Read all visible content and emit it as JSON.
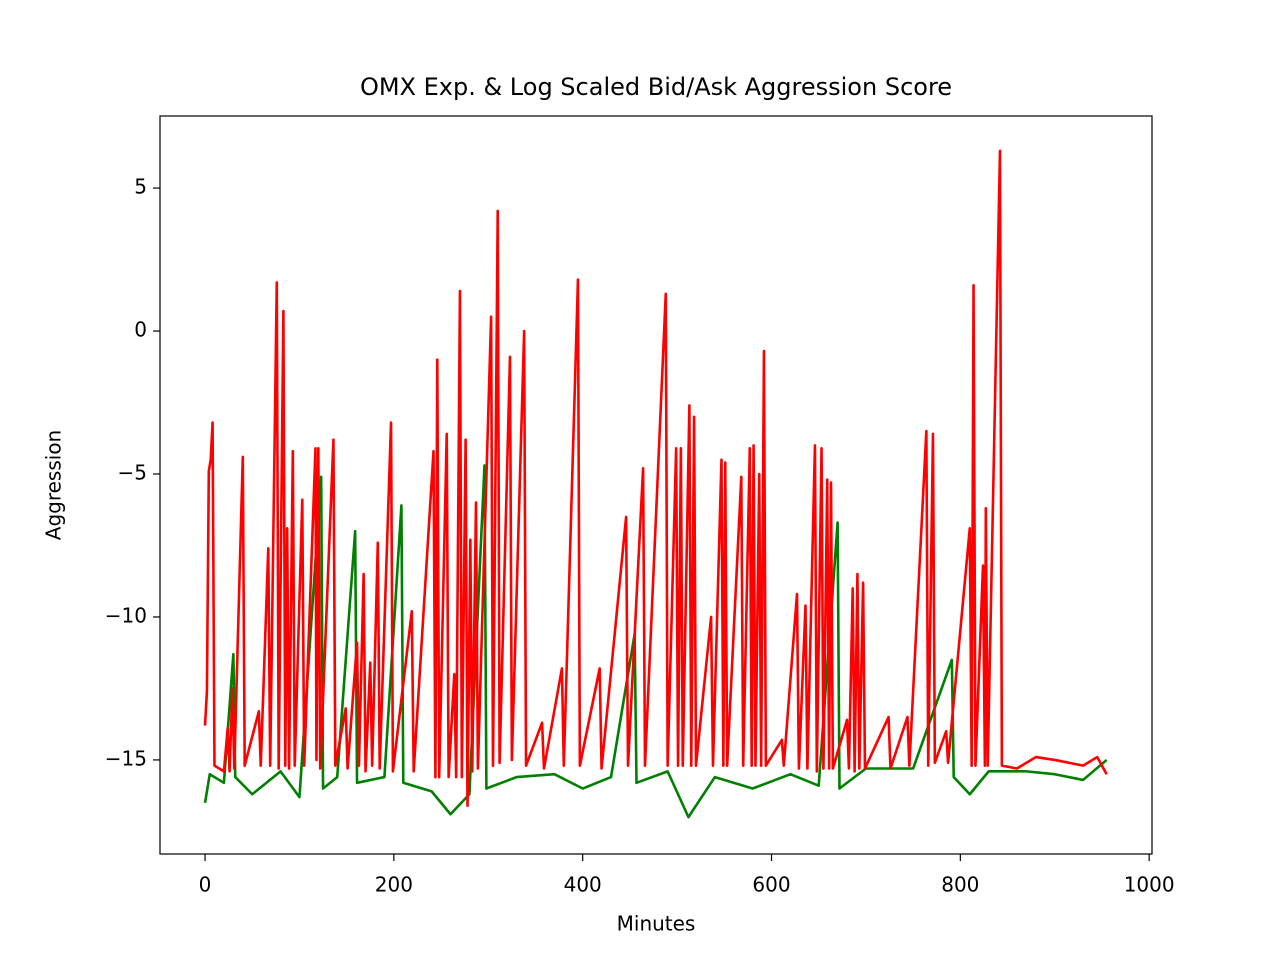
{
  "chart_data": {
    "type": "line",
    "title": "OMX Exp. & Log Scaled Bid/Ask Aggression Score",
    "x_label": "Minutes",
    "y_label": "Aggression",
    "xlim": [
      -47.7,
      1003
    ],
    "ylim": [
      -18.29,
      7.52
    ],
    "xticks": [
      0,
      200,
      400,
      600,
      800,
      1000
    ],
    "yticks": [
      {
        "value": -15,
        "label": "−15"
      },
      {
        "value": -10,
        "label": "−10"
      },
      {
        "value": -5,
        "label": "−5"
      },
      0,
      5
    ],
    "series": [
      {
        "color": "#008000",
        "x": [
          0,
          5,
          20,
          30,
          32,
          50,
          80,
          100,
          123,
          125,
          140,
          159,
          161,
          190,
          208,
          210,
          240,
          260,
          280,
          296,
          298,
          330,
          370,
          400,
          430,
          455,
          457,
          490,
          512,
          540,
          580,
          620,
          650,
          670,
          672,
          700,
          750,
          791,
          793,
          810,
          830,
          870,
          900,
          930,
          955
        ],
        "values": [
          -16.5,
          -15.5,
          -15.8,
          -11.3,
          -15.6,
          -16.2,
          -15.4,
          -16.3,
          -5.1,
          -16.0,
          -15.6,
          -7.0,
          -15.8,
          -15.6,
          -6.1,
          -15.8,
          -16.1,
          -16.9,
          -16.2,
          -4.7,
          -16.0,
          -15.6,
          -15.5,
          -16.0,
          -15.6,
          -10.6,
          -15.8,
          -15.4,
          -17.0,
          -15.6,
          -16.0,
          -15.5,
          -15.9,
          -6.7,
          -16.0,
          -15.3,
          -15.3,
          -11.5,
          -15.6,
          -16.2,
          -15.4,
          -15.4,
          -15.5,
          -15.7,
          -15.0
        ]
      },
      {
        "color": "#ff0000",
        "x": [
          0,
          2,
          4,
          6,
          8,
          10,
          20,
          24,
          26,
          29,
          31,
          40,
          42,
          57,
          59,
          67,
          69,
          76,
          78,
          83,
          85,
          87,
          89,
          93,
          95,
          103,
          105,
          117,
          118,
          120,
          122,
          136,
          138,
          149,
          151,
          161,
          163,
          168,
          170,
          175,
          177,
          183,
          185,
          197,
          199,
          219,
          221,
          242,
          244,
          246,
          248,
          256,
          258,
          264,
          266,
          270,
          272,
          276,
          278,
          281,
          283,
          287,
          289,
          303,
          305,
          310,
          312,
          323,
          325,
          338,
          340,
          357,
          359,
          378,
          380,
          395,
          397,
          418,
          420,
          446,
          448,
          464,
          466,
          488,
          490,
          499,
          501,
          504,
          506,
          513,
          515,
          518,
          520,
          536,
          538,
          547,
          549,
          551,
          553,
          568,
          570,
          577,
          579,
          581,
          583,
          587,
          589,
          592,
          594,
          611,
          613,
          627,
          629,
          636,
          638,
          646,
          648,
          653,
          655,
          659,
          661,
          663,
          665,
          680,
          682,
          686,
          688,
          691,
          693,
          697,
          699,
          724,
          726,
          744,
          746,
          764,
          766,
          771,
          773,
          785,
          787,
          810,
          812,
          814,
          816,
          824,
          826,
          827,
          829,
          842,
          844,
          860,
          880,
          900,
          930,
          945,
          955
        ],
        "values": [
          -13.8,
          -12.6,
          -4.9,
          -4.5,
          -3.2,
          -15.2,
          -15.4,
          -13.9,
          -15.4,
          -12.5,
          -15.3,
          -4.4,
          -15.2,
          -13.3,
          -15.2,
          -7.6,
          -15.2,
          1.7,
          -15.3,
          0.7,
          -15.2,
          -6.9,
          -15.3,
          -4.2,
          -15.2,
          -5.9,
          -15.2,
          -4.1,
          -15.0,
          -4.1,
          -15.3,
          -3.8,
          -15.2,
          -13.2,
          -15.3,
          -10.9,
          -15.2,
          -8.5,
          -15.4,
          -11.6,
          -15.2,
          -7.4,
          -15.3,
          -3.2,
          -15.4,
          -9.8,
          -15.4,
          -4.2,
          -15.6,
          -1.0,
          -15.6,
          -3.6,
          -15.6,
          -12.0,
          -15.6,
          1.4,
          -15.6,
          -3.8,
          -16.6,
          -7.3,
          -15.4,
          -6.0,
          -15.3,
          0.5,
          -15.2,
          4.2,
          -15.1,
          -0.9,
          -15.0,
          0.0,
          -15.2,
          -13.7,
          -15.3,
          -11.8,
          -15.2,
          1.8,
          -15.2,
          -11.8,
          -15.3,
          -6.5,
          -15.2,
          -4.8,
          -15.2,
          1.3,
          -15.2,
          -4.1,
          -15.2,
          -4.1,
          -15.2,
          -2.6,
          -15.2,
          -3.0,
          -15.2,
          -10.0,
          -15.2,
          -4.5,
          -15.2,
          -4.6,
          -15.2,
          -5.1,
          -15.2,
          -4.1,
          -15.2,
          -4.0,
          -15.2,
          -5.0,
          -15.2,
          -0.7,
          -15.2,
          -14.3,
          -15.2,
          -9.2,
          -15.3,
          -9.6,
          -15.3,
          -4.0,
          -15.4,
          -4.1,
          -15.3,
          -5.2,
          -15.3,
          -5.3,
          -15.3,
          -13.6,
          -15.3,
          -9.0,
          -15.4,
          -8.5,
          -15.3,
          -8.8,
          -15.3,
          -13.5,
          -15.3,
          -13.5,
          -15.2,
          -3.5,
          -15.2,
          -3.6,
          -15.1,
          -14.0,
          -15.1,
          -6.9,
          -15.2,
          1.6,
          -15.2,
          -8.2,
          -15.2,
          -6.2,
          -15.2,
          6.3,
          -15.2,
          -15.3,
          -14.9,
          -15.0,
          -15.2,
          -14.9,
          -15.5
        ]
      }
    ]
  }
}
